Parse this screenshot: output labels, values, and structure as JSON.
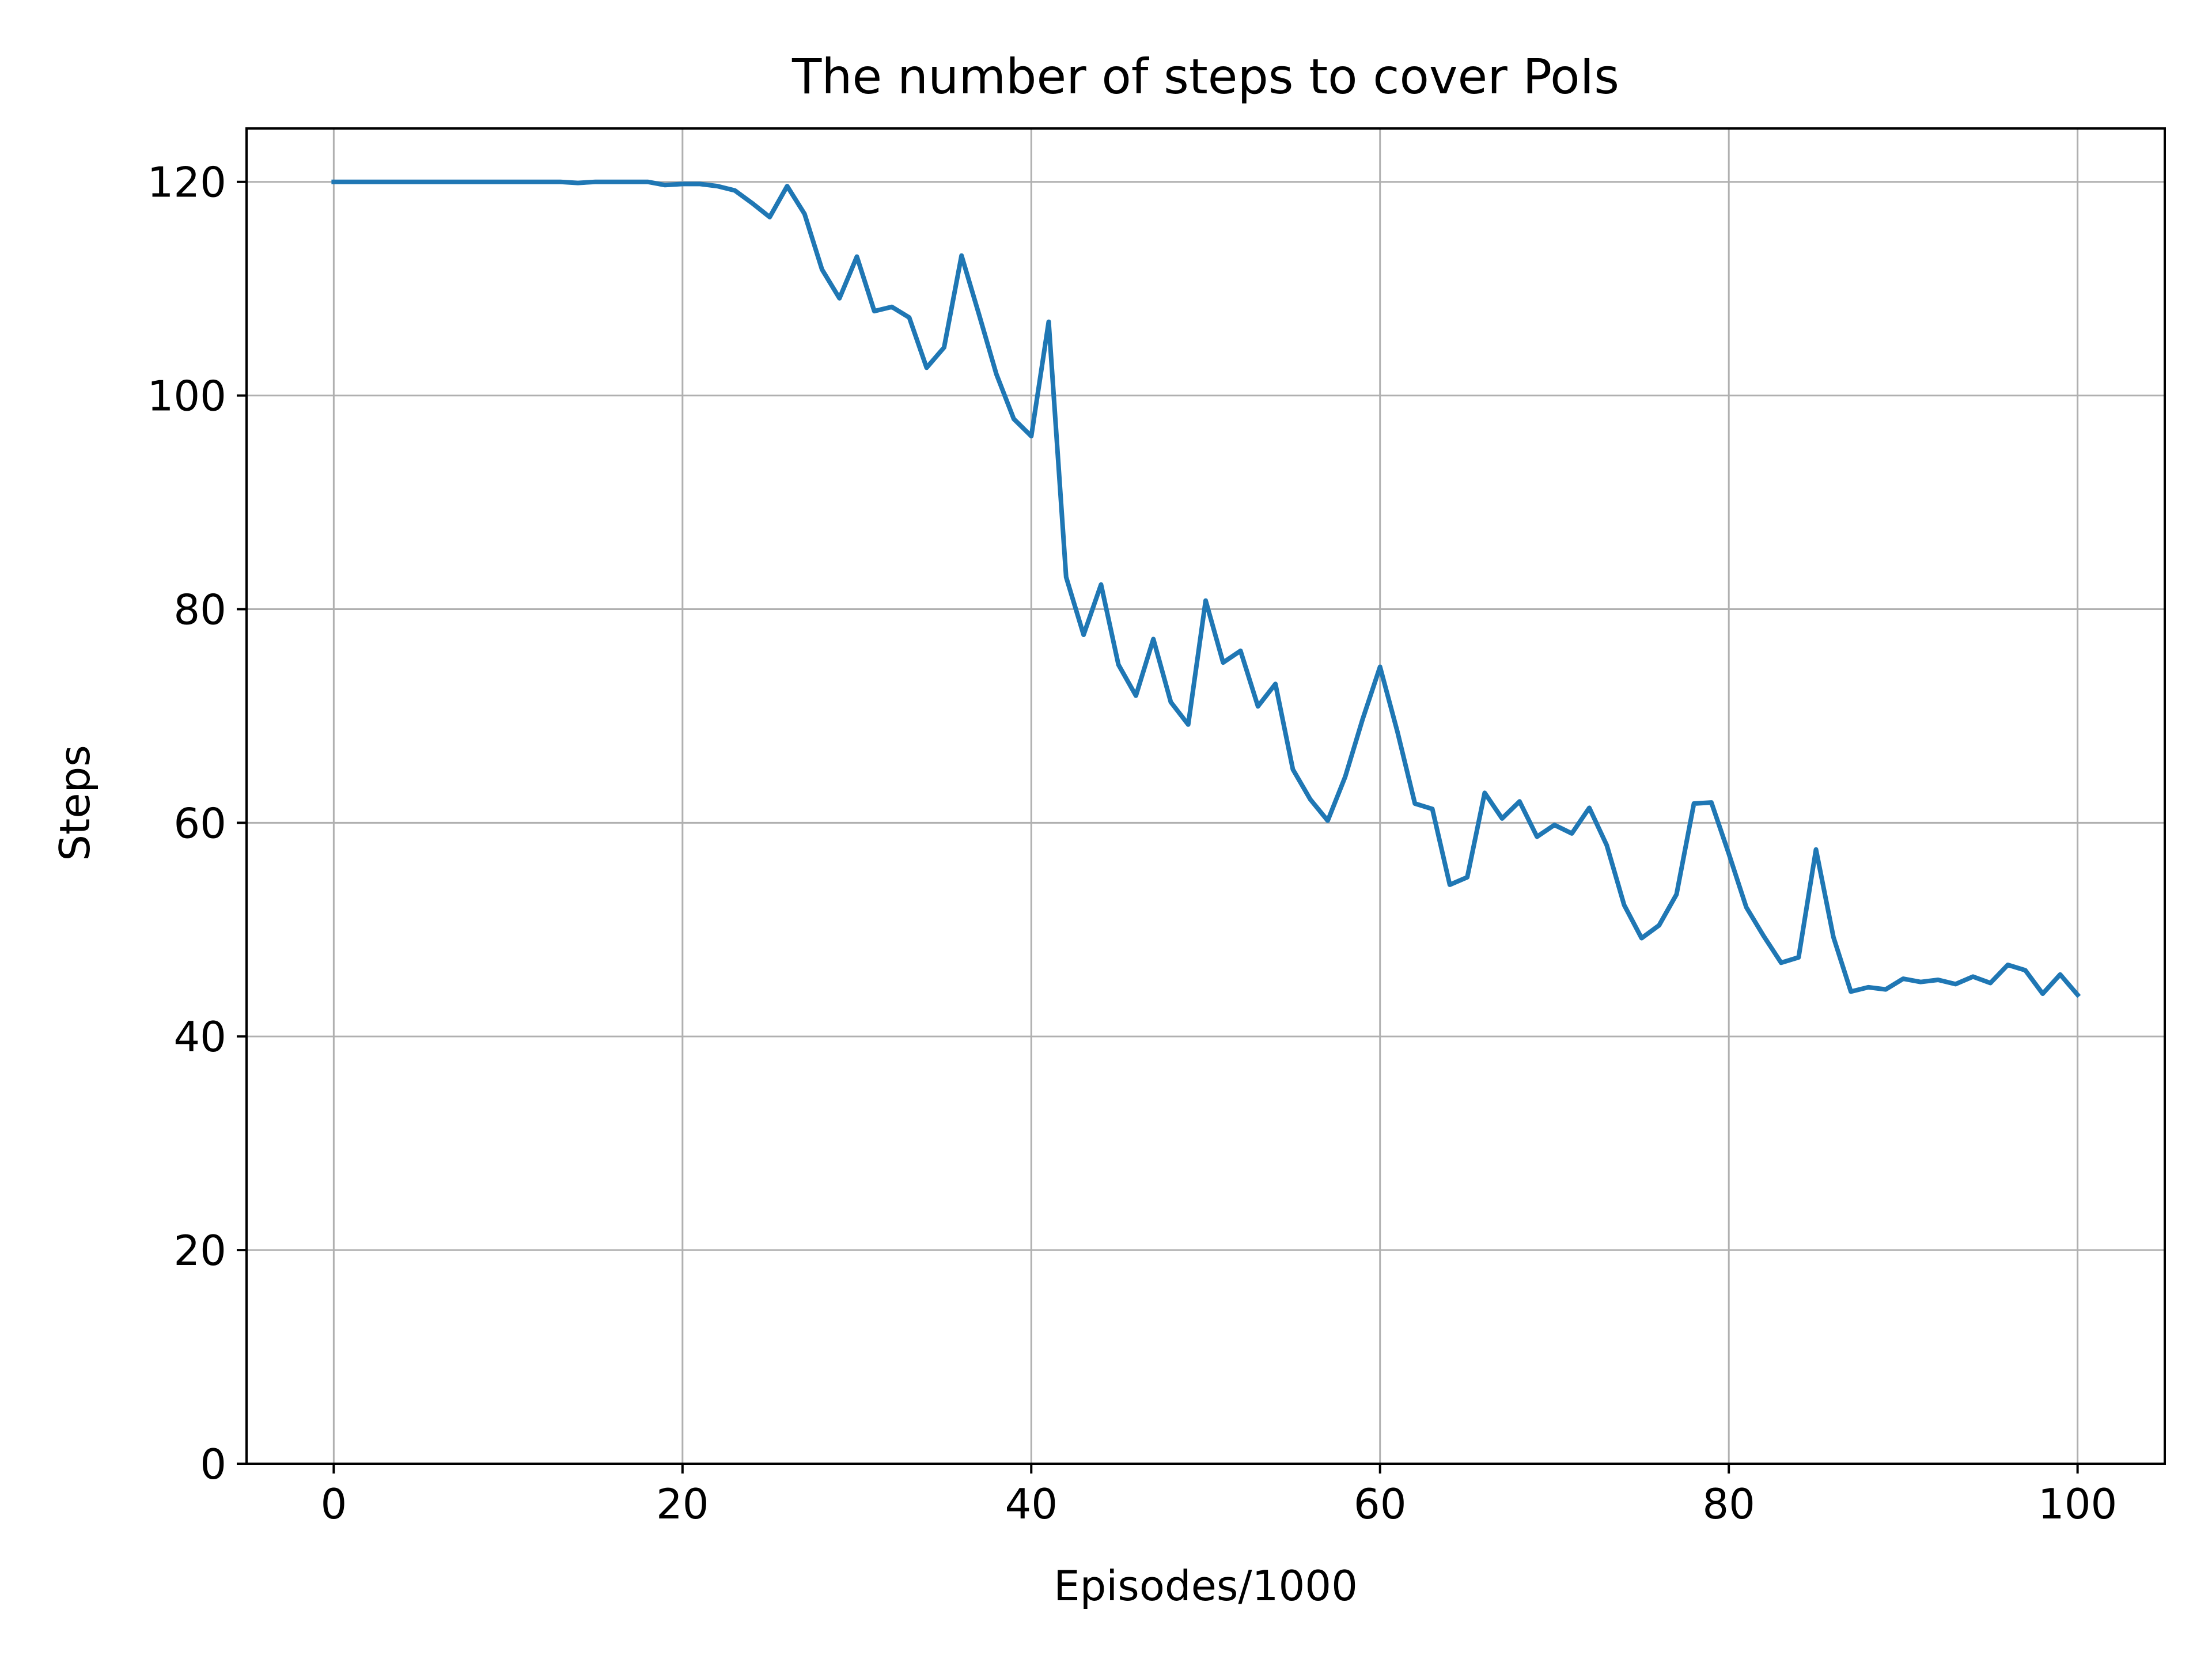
{
  "chart_data": {
    "type": "line",
    "title": "The number of steps to cover PoIs",
    "xlabel": "Episodes/1000",
    "ylabel": "Steps",
    "xlim": [
      -5,
      105
    ],
    "ylim": [
      0,
      125
    ],
    "xticks": [
      0,
      20,
      40,
      60,
      80,
      100
    ],
    "yticks": [
      0,
      20,
      40,
      60,
      80,
      100,
      120
    ],
    "grid": true,
    "legend": "none",
    "series": [
      {
        "color": "#1f77b4",
        "x": [
          0,
          1,
          2,
          3,
          4,
          5,
          6,
          7,
          8,
          9,
          10,
          11,
          12,
          13,
          14,
          15,
          16,
          17,
          18,
          19,
          20,
          21,
          22,
          23,
          24,
          25,
          26,
          27,
          28,
          29,
          30,
          31,
          32,
          33,
          34,
          35,
          36,
          37,
          38,
          39,
          40,
          41,
          42,
          43,
          44,
          45,
          46,
          47,
          48,
          49,
          50,
          51,
          52,
          53,
          54,
          55,
          56,
          57,
          58,
          59,
          60,
          61,
          62,
          63,
          64,
          65,
          66,
          67,
          68,
          69,
          70,
          71,
          72,
          73,
          74,
          75,
          76,
          77,
          78,
          79,
          80,
          81,
          82,
          83,
          84,
          85,
          86,
          87,
          88,
          89,
          90,
          91,
          92,
          93,
          94,
          95,
          96,
          97,
          98,
          99,
          100
        ],
        "y": [
          120,
          120,
          120,
          120,
          120,
          120,
          120,
          120,
          120,
          120,
          120,
          120,
          120,
          120,
          119.9,
          120,
          120,
          120,
          120,
          119.7,
          119.8,
          119.8,
          119.6,
          119.2,
          118,
          116.7,
          119.6,
          117,
          111.8,
          109.1,
          113,
          107.9,
          108.3,
          107.3,
          102.6,
          104.5,
          113.1,
          107.6,
          102,
          97.8,
          96.2,
          106.9,
          83,
          77.6,
          82.3,
          74.8,
          71.9,
          77.2,
          71.3,
          69.2,
          80.8,
          75,
          76.1,
          70.9,
          73,
          65,
          62.2,
          60.2,
          64.3,
          69.7,
          74.6,
          68.5,
          61.8,
          61.3,
          54.2,
          54.9,
          62.8,
          60.4,
          62,
          58.7,
          59.8,
          59,
          61.4,
          57.9,
          52.3,
          49.2,
          50.4,
          53.3,
          61.8,
          61.9,
          57.1,
          52.1,
          49.4,
          46.9,
          47.4,
          57.5,
          49.3,
          44.2,
          44.6,
          44.4,
          45.4,
          45.1,
          45.3,
          44.9,
          45.6,
          45,
          46.7,
          46.2,
          44,
          45.8,
          43.9
        ]
      }
    ]
  }
}
